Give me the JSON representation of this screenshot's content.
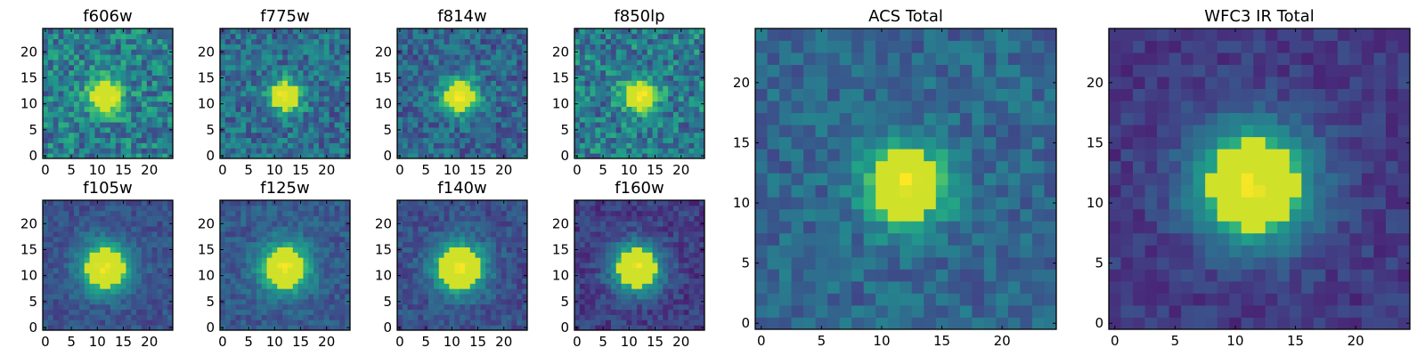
{
  "chart_data": [
    {
      "type": "heatmap",
      "title": "f606w",
      "colormap": "viridis",
      "size": 25,
      "xlim": [
        0,
        24
      ],
      "ylim": [
        0,
        24
      ],
      "xticks": [
        0,
        5,
        10,
        15,
        20
      ],
      "yticks": [
        0,
        5,
        10,
        15,
        20
      ],
      "source_center": [
        11.5,
        11.5
      ],
      "source_sigma": 2.6,
      "peak": 0.95,
      "background": 0.42,
      "noise": 0.22
    },
    {
      "type": "heatmap",
      "title": "f775w",
      "colormap": "viridis",
      "size": 25,
      "xlim": [
        0,
        24
      ],
      "ylim": [
        0,
        24
      ],
      "xticks": [
        0,
        5,
        10,
        15,
        20
      ],
      "yticks": [
        0,
        5,
        10,
        15,
        20
      ],
      "source_center": [
        12.0,
        11.5
      ],
      "source_sigma": 2.3,
      "peak": 0.98,
      "background": 0.36,
      "noise": 0.18
    },
    {
      "type": "heatmap",
      "title": "f814w",
      "colormap": "viridis",
      "size": 25,
      "xlim": [
        0,
        24
      ],
      "ylim": [
        0,
        24
      ],
      "xticks": [
        0,
        5,
        10,
        15,
        20
      ],
      "yticks": [
        0,
        5,
        10,
        15,
        20
      ],
      "source_center": [
        11.5,
        11.5
      ],
      "source_sigma": 2.5,
      "peak": 0.98,
      "background": 0.33,
      "noise": 0.17
    },
    {
      "type": "heatmap",
      "title": "f850lp",
      "colormap": "viridis",
      "size": 25,
      "xlim": [
        0,
        24
      ],
      "ylim": [
        0,
        24
      ],
      "xticks": [
        0,
        5,
        10,
        15,
        20
      ],
      "yticks": [
        0,
        5,
        10,
        15,
        20
      ],
      "source_center": [
        12.0,
        11.5
      ],
      "source_sigma": 2.4,
      "peak": 0.97,
      "background": 0.42,
      "noise": 0.22
    },
    {
      "type": "heatmap",
      "title": "f105w",
      "colormap": "viridis",
      "size": 25,
      "xlim": [
        0,
        24
      ],
      "ylim": [
        0,
        24
      ],
      "xticks": [
        0,
        5,
        10,
        15,
        20
      ],
      "yticks": [
        0,
        5,
        10,
        15,
        20
      ],
      "source_center": [
        11.5,
        11.5
      ],
      "source_sigma": 3.4,
      "peak": 0.98,
      "background": 0.25,
      "noise": 0.09
    },
    {
      "type": "heatmap",
      "title": "f125w",
      "colormap": "viridis",
      "size": 25,
      "xlim": [
        0,
        24
      ],
      "ylim": [
        0,
        24
      ],
      "xticks": [
        0,
        5,
        10,
        15,
        20
      ],
      "yticks": [
        0,
        5,
        10,
        15,
        20
      ],
      "source_center": [
        12.0,
        11.5
      ],
      "source_sigma": 3.4,
      "peak": 0.98,
      "background": 0.28,
      "noise": 0.1
    },
    {
      "type": "heatmap",
      "title": "f140w",
      "colormap": "viridis",
      "size": 25,
      "xlim": [
        0,
        24
      ],
      "ylim": [
        0,
        24
      ],
      "xticks": [
        0,
        5,
        10,
        15,
        20
      ],
      "yticks": [
        0,
        5,
        10,
        15,
        20
      ],
      "source_center": [
        11.5,
        11.5
      ],
      "source_sigma": 3.5,
      "peak": 0.98,
      "background": 0.24,
      "noise": 0.1
    },
    {
      "type": "heatmap",
      "title": "f160w",
      "colormap": "viridis",
      "size": 25,
      "xlim": [
        0,
        24
      ],
      "ylim": [
        0,
        24
      ],
      "xticks": [
        0,
        5,
        10,
        15,
        20
      ],
      "yticks": [
        0,
        5,
        10,
        15,
        20
      ],
      "source_center": [
        11.5,
        11.5
      ],
      "source_sigma": 3.3,
      "peak": 0.98,
      "background": 0.18,
      "noise": 0.1
    },
    {
      "type": "heatmap",
      "title": "ACS Total",
      "colormap": "viridis",
      "size": 25,
      "xlim": [
        0,
        24
      ],
      "ylim": [
        0,
        24
      ],
      "xticks": [
        0,
        5,
        10,
        15,
        20
      ],
      "yticks": [
        0,
        5,
        10,
        15,
        20
      ],
      "source_center": [
        12.0,
        11.5
      ],
      "source_sigma": 2.5,
      "peak": 0.98,
      "background": 0.33,
      "noise": 0.12
    },
    {
      "type": "heatmap",
      "title": "WFC3 IR Total",
      "colormap": "viridis",
      "size": 25,
      "xlim": [
        0,
        24
      ],
      "ylim": [
        0,
        24
      ],
      "xticks": [
        0,
        5,
        10,
        15,
        20
      ],
      "yticks": [
        0,
        5,
        10,
        15,
        20
      ],
      "source_center": [
        11.5,
        11.5
      ],
      "source_sigma": 3.4,
      "peak": 0.98,
      "background": 0.17,
      "noise": 0.08
    }
  ]
}
